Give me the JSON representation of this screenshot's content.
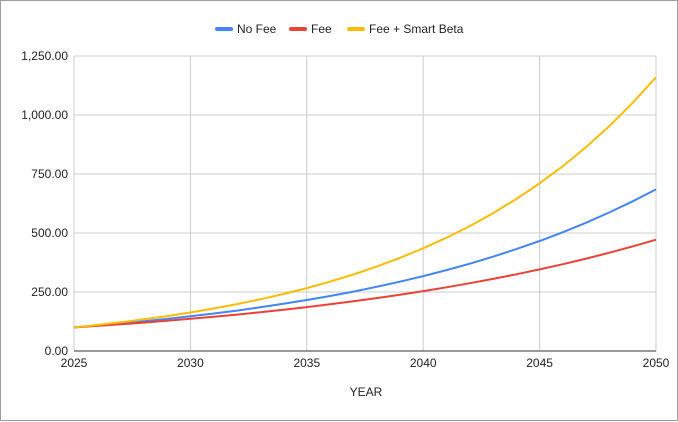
{
  "chart_data": {
    "type": "line",
    "title": "",
    "xlabel": "YEAR",
    "ylabel": "",
    "xlim": [
      2025,
      2050
    ],
    "ylim": [
      0,
      1250
    ],
    "x_ticks": [
      "2025",
      "2030",
      "2035",
      "2040",
      "2045",
      "2050"
    ],
    "y_ticks": [
      "0.00",
      "250.00",
      "500.00",
      "750.00",
      "1,000.00",
      "1,250.00"
    ],
    "grid": true,
    "legend_position": "top",
    "x": [
      2025,
      2026,
      2027,
      2028,
      2029,
      2030,
      2031,
      2032,
      2033,
      2034,
      2035,
      2036,
      2037,
      2038,
      2039,
      2040,
      2041,
      2042,
      2043,
      2044,
      2045,
      2046,
      2047,
      2048,
      2049,
      2050
    ],
    "series": [
      {
        "name": "No Fee",
        "color": "#4285f4",
        "values": [
          100,
          108,
          116.64,
          125.97,
          136.05,
          146.93,
          158.69,
          171.38,
          185.09,
          199.9,
          215.89,
          233.16,
          251.82,
          271.96,
          293.72,
          317.22,
          342.59,
          370.0,
          399.6,
          431.57,
          466.1,
          503.38,
          543.65,
          587.15,
          634.12,
          684.85
        ]
      },
      {
        "name": "Fee",
        "color": "#ea4335",
        "values": [
          100,
          106.4,
          113.21,
          120.46,
          128.17,
          136.38,
          145.11,
          154.39,
          164.27,
          174.79,
          185.98,
          197.88,
          210.54,
          224.02,
          238.36,
          253.61,
          269.84,
          287.11,
          305.49,
          325.04,
          345.84,
          367.98,
          391.53,
          416.58,
          443.24,
          471.61
        ]
      },
      {
        "name": "Fee + Smart Beta",
        "color": "#fbbc04",
        "values": [
          100,
          110.3,
          121.66,
          134.19,
          148.01,
          163.26,
          180.07,
          198.62,
          219.08,
          241.64,
          266.53,
          293.99,
          324.27,
          357.67,
          394.51,
          435.14,
          479.96,
          529.4,
          583.93,
          644.07,
          710.41,
          783.58,
          864.29,
          953.31,
          1051.5,
          1159.81
        ]
      }
    ]
  }
}
